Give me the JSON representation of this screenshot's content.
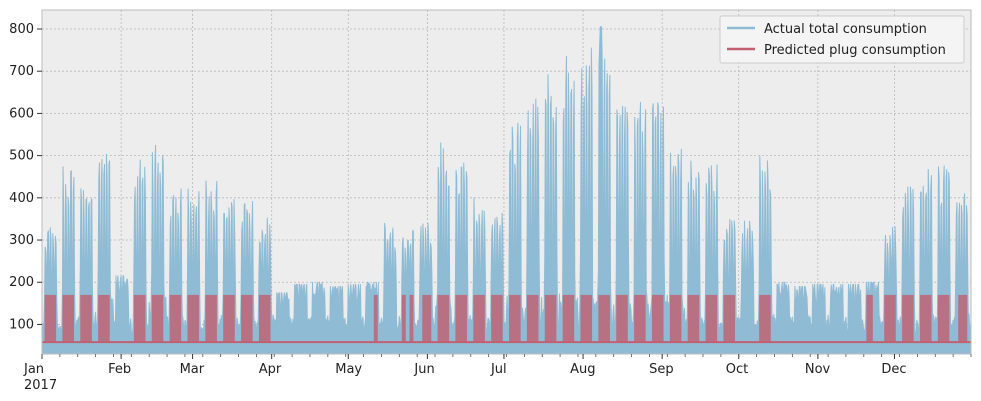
{
  "chart_data": {
    "type": "area",
    "background": "#EDEDED",
    "grid": true,
    "legend_position": "top-right",
    "xlim": [
      "2017-01-01",
      "2017-12-31"
    ],
    "ylim": [
      30,
      845
    ],
    "x_tick_labels": [
      "Jan\n2017",
      "Feb",
      "Mar",
      "Apr",
      "May",
      "Jun",
      "Jul",
      "Aug",
      "Sep",
      "Oct",
      "Nov",
      "Dec"
    ],
    "y_ticks": [
      100,
      200,
      300,
      400,
      500,
      600,
      700,
      800
    ],
    "series": [
      {
        "name": "Actual total consumption",
        "color": "#8FBBD4",
        "peak_value": 805,
        "peak_date": "2017-08-08",
        "weekly_peaks": [
          [
            "2017-01-01",
            345
          ],
          [
            "2017-01-08",
            480
          ],
          [
            "2017-01-15",
            435
          ],
          [
            "2017-01-22",
            525
          ],
          [
            "2017-01-29",
            215
          ],
          [
            "2017-02-05",
            495
          ],
          [
            "2017-02-12",
            530
          ],
          [
            "2017-02-19",
            430
          ],
          [
            "2017-02-26",
            425
          ],
          [
            "2017-03-05",
            440
          ],
          [
            "2017-03-12",
            410
          ],
          [
            "2017-03-19",
            395
          ],
          [
            "2017-03-26",
            365
          ],
          [
            "2017-04-02",
            175
          ],
          [
            "2017-04-09",
            195
          ],
          [
            "2017-04-16",
            200
          ],
          [
            "2017-04-23",
            190
          ],
          [
            "2017-04-30",
            195
          ],
          [
            "2017-05-07",
            200
          ],
          [
            "2017-05-14",
            345
          ],
          [
            "2017-05-21",
            330
          ],
          [
            "2017-05-28",
            340
          ],
          [
            "2017-06-04",
            545
          ],
          [
            "2017-06-11",
            490
          ],
          [
            "2017-06-18",
            400
          ],
          [
            "2017-06-25",
            380
          ],
          [
            "2017-07-02",
            580
          ],
          [
            "2017-07-09",
            640
          ],
          [
            "2017-07-16",
            700
          ],
          [
            "2017-07-23",
            740
          ],
          [
            "2017-07-30",
            765
          ],
          [
            "2017-08-06",
            805
          ],
          [
            "2017-08-13",
            640
          ],
          [
            "2017-08-20",
            640
          ],
          [
            "2017-08-27",
            640
          ],
          [
            "2017-09-03",
            520
          ],
          [
            "2017-09-10",
            495
          ],
          [
            "2017-09-17",
            480
          ],
          [
            "2017-09-24",
            380
          ],
          [
            "2017-10-01",
            345
          ],
          [
            "2017-10-08",
            500
          ],
          [
            "2017-10-15",
            200
          ],
          [
            "2017-10-22",
            190
          ],
          [
            "2017-10-29",
            195
          ],
          [
            "2017-11-05",
            195
          ],
          [
            "2017-11-12",
            195
          ],
          [
            "2017-11-19",
            200
          ],
          [
            "2017-11-26",
            340
          ],
          [
            "2017-12-03",
            430
          ],
          [
            "2017-12-10",
            470
          ],
          [
            "2017-12-17",
            480
          ],
          [
            "2017-12-24",
            455
          ]
        ]
      },
      {
        "name": "Predicted plug consumption",
        "color": "#C06070",
        "baseline": 58,
        "on_level": 170,
        "weekday_blocks": [
          [
            "2017-01-02",
            "2017-01-06"
          ],
          [
            "2017-01-09",
            "2017-01-13"
          ],
          [
            "2017-01-16",
            "2017-01-20"
          ],
          [
            "2017-01-23",
            "2017-01-27"
          ],
          [
            "2017-02-06",
            "2017-02-10"
          ],
          [
            "2017-02-13",
            "2017-02-17"
          ],
          [
            "2017-02-20",
            "2017-02-24"
          ],
          [
            "2017-02-27",
            "2017-03-03"
          ],
          [
            "2017-03-06",
            "2017-03-10"
          ],
          [
            "2017-03-13",
            "2017-03-17"
          ],
          [
            "2017-03-20",
            "2017-03-24"
          ],
          [
            "2017-03-27",
            "2017-03-31"
          ],
          [
            "2017-05-11",
            "2017-05-12"
          ],
          [
            "2017-05-22",
            "2017-05-23"
          ],
          [
            "2017-05-25",
            "2017-05-26"
          ],
          [
            "2017-05-30",
            "2017-06-02"
          ],
          [
            "2017-06-05",
            "2017-06-09"
          ],
          [
            "2017-06-12",
            "2017-06-16"
          ],
          [
            "2017-06-19",
            "2017-06-23"
          ],
          [
            "2017-06-26",
            "2017-06-30"
          ],
          [
            "2017-07-03",
            "2017-07-07"
          ],
          [
            "2017-07-10",
            "2017-07-14"
          ],
          [
            "2017-07-17",
            "2017-07-21"
          ],
          [
            "2017-07-24",
            "2017-07-28"
          ],
          [
            "2017-07-31",
            "2017-08-04"
          ],
          [
            "2017-08-07",
            "2017-08-11"
          ],
          [
            "2017-08-14",
            "2017-08-18"
          ],
          [
            "2017-08-21",
            "2017-08-25"
          ],
          [
            "2017-08-28",
            "2017-09-01"
          ],
          [
            "2017-09-04",
            "2017-09-08"
          ],
          [
            "2017-09-11",
            "2017-09-15"
          ],
          [
            "2017-09-18",
            "2017-09-22"
          ],
          [
            "2017-09-25",
            "2017-09-29"
          ],
          [
            "2017-10-09",
            "2017-10-13"
          ],
          [
            "2017-11-20",
            "2017-11-22"
          ],
          [
            "2017-11-27",
            "2017-12-01"
          ],
          [
            "2017-12-04",
            "2017-12-08"
          ],
          [
            "2017-12-11",
            "2017-12-15"
          ],
          [
            "2017-12-18",
            "2017-12-22"
          ],
          [
            "2017-12-26",
            "2017-12-29"
          ]
        ]
      }
    ]
  }
}
